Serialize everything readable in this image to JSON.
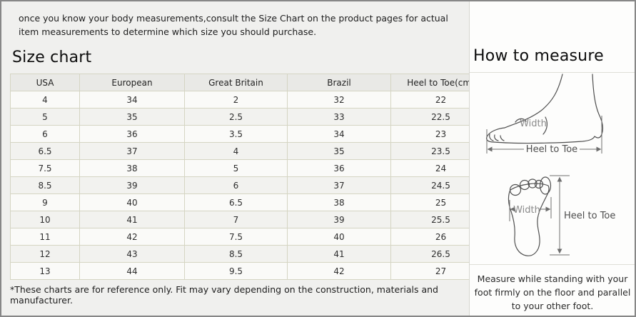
{
  "intro": {
    "text": "once you know your body measurements,consult the Size Chart on the product pages for actual item measurements to determine which size you should purchase."
  },
  "size_chart": {
    "title": "Size chart",
    "columns": [
      "USA",
      "European",
      "Great Britain",
      "Brazil",
      "Heel to Toe(cm)"
    ],
    "rows": [
      [
        "4",
        "34",
        "2",
        "32",
        "22"
      ],
      [
        "5",
        "35",
        "2.5",
        "33",
        "22.5"
      ],
      [
        "6",
        "36",
        "3.5",
        "34",
        "23"
      ],
      [
        "6.5",
        "37",
        "4",
        "35",
        "23.5"
      ],
      [
        "7.5",
        "38",
        "5",
        "36",
        "24"
      ],
      [
        "8.5",
        "39",
        "6",
        "37",
        "24.5"
      ],
      [
        "9",
        "40",
        "6.5",
        "38",
        "25"
      ],
      [
        "10",
        "41",
        "7",
        "39",
        "25.5"
      ],
      [
        "11",
        "42",
        "7.5",
        "40",
        "26"
      ],
      [
        "12",
        "43",
        "8.5",
        "41",
        "26.5"
      ],
      [
        "13",
        "44",
        "9.5",
        "42",
        "27"
      ]
    ],
    "footnote": "*These charts are for reference only. Fit may vary depending on the construction, materials and manufacturer."
  },
  "how_to_measure": {
    "title": "How to measure",
    "side_view": {
      "width_label": "Width",
      "heel_to_toe_label": "Heel to Toe"
    },
    "top_view": {
      "width_label": "Width",
      "heel_to_toe_label": "Heel to Toe"
    },
    "instruction": "Measure while standing with your foot firmly on the floor and parallel to your other foot."
  },
  "colors": {
    "table_border": "#d5d5c3",
    "table_header_bg": "#e9e9e6",
    "left_panel_bg": "#f0f0ee",
    "right_panel_bg": "#fdfdfc"
  }
}
